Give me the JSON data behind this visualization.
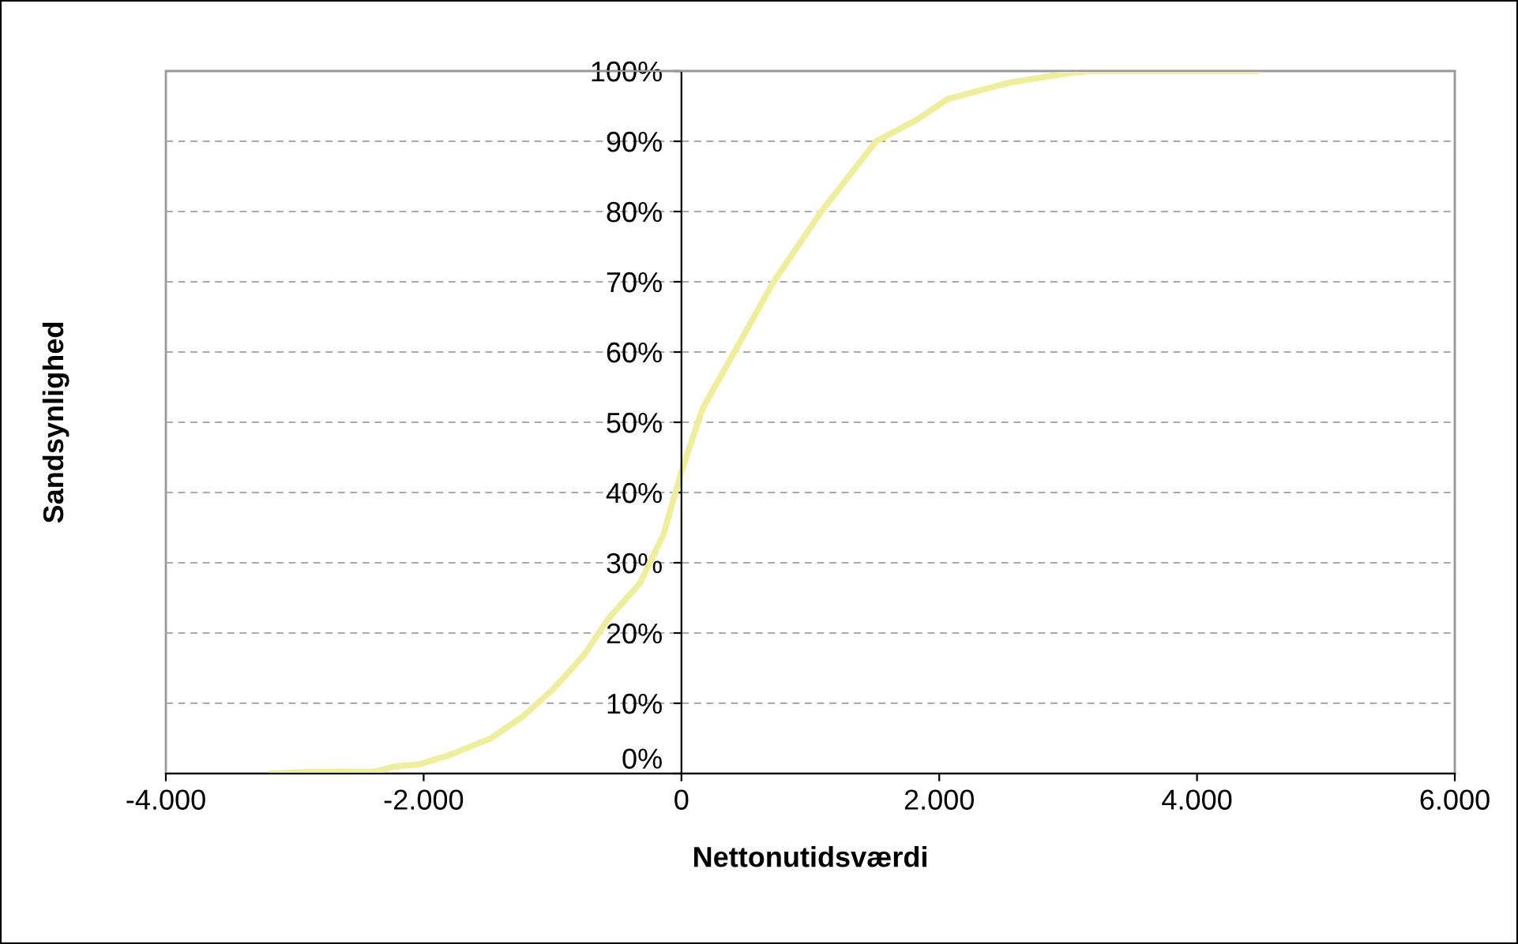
{
  "chart_data": {
    "type": "line",
    "xlabel": "Nettonutidsværdi",
    "ylabel": "Sandsynlighed",
    "x": [
      -3180,
      -2900,
      -2370,
      -2220,
      -2035,
      -1790,
      -1480,
      -1240,
      -995,
      -750,
      -570,
      -325,
      -140,
      0,
      165,
      410,
      715,
      1085,
      1510,
      1820,
      2065,
      2555,
      3045,
      3170,
      4455
    ],
    "series": [
      {
        "color": "#eeee9c",
        "values": [
          0,
          0.2,
          0.3,
          1,
          1.3,
          2.7,
          5,
          8,
          12,
          17,
          22,
          27,
          34,
          43,
          52,
          60,
          70,
          80,
          90,
          93,
          96,
          98.4,
          99.8,
          100,
          100
        ]
      }
    ],
    "xlim": [
      -4000,
      6000
    ],
    "ylim": [
      0,
      100
    ],
    "xticks": [
      {
        "value": -4000,
        "label": "-4.000"
      },
      {
        "value": -2000,
        "label": "-2.000"
      },
      0,
      {
        "value": 2000,
        "label": "2.000"
      },
      {
        "value": 4000,
        "label": "4.000"
      },
      {
        "value": 6000,
        "label": "6.000"
      }
    ],
    "yticks": [
      {
        "value": 0,
        "label": "0%"
      },
      {
        "value": 10,
        "label": "10%"
      },
      {
        "value": 20,
        "label": "20%"
      },
      {
        "value": 30,
        "label": "30%"
      },
      {
        "value": 40,
        "label": "40%"
      },
      {
        "value": 50,
        "label": "50%"
      },
      {
        "value": 60,
        "label": "60%"
      },
      {
        "value": 70,
        "label": "70%"
      },
      {
        "value": 80,
        "label": "80%"
      },
      {
        "value": 90,
        "label": "90%"
      },
      {
        "value": 100,
        "label": "100%"
      }
    ],
    "grid": "y",
    "marker": "none",
    "line_style": "solid"
  }
}
